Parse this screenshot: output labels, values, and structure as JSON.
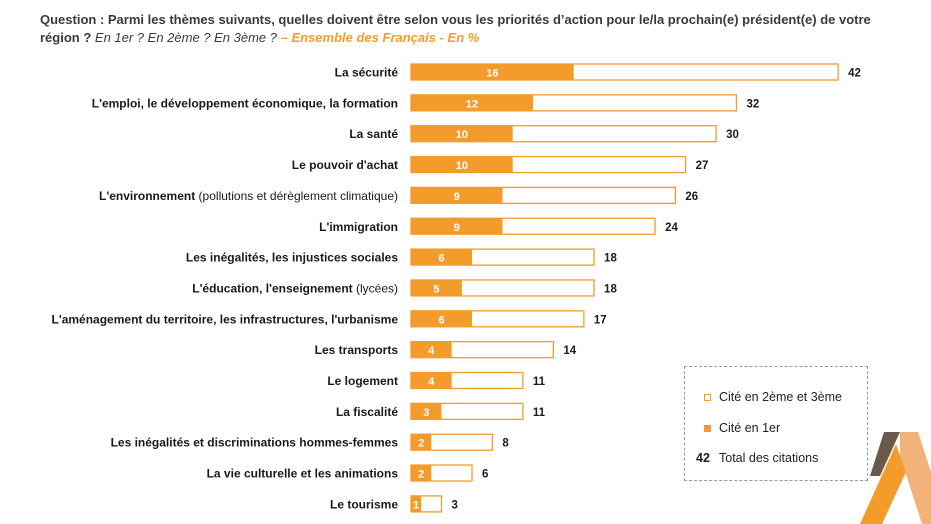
{
  "question": {
    "prefix": "Question : ",
    "text": "Parmi les thèmes suivants, quelles doivent être selon vous les priorités d’action pour le/la prochain(e) président(e) de votre région ?",
    "subtext": " En 1er ? En 2ème ? En 3ème ?",
    "population": " – Ensemble des Français - En %"
  },
  "colors": {
    "accent": "#f39c2c",
    "bar_fill": "#f39c2c",
    "bar_outline": "#f39c2c",
    "deco_dark": "#6b5a4a",
    "deco_light": "#f2b27a"
  },
  "legend": {
    "items": [
      {
        "swatch": "outline",
        "label": "Cité en 2ème et 3ème"
      },
      {
        "swatch": "filled",
        "label": "Cité en 1er"
      },
      {
        "number": "42",
        "label": "Total des citations"
      }
    ]
  },
  "chart_data": {
    "type": "bar",
    "orientation": "horizontal",
    "stacked_overlay": true,
    "categories": [
      {
        "bold": "La sécurité",
        "normal": ""
      },
      {
        "bold": "L'emploi, le développement économique, la formation",
        "normal": ""
      },
      {
        "bold": "La santé",
        "normal": ""
      },
      {
        "bold": "Le pouvoir d'achat",
        "normal": ""
      },
      {
        "bold": "L'environnement",
        "normal": " (pollutions et dérèglement climatique)"
      },
      {
        "bold": "L'immigration",
        "normal": ""
      },
      {
        "bold": "Les inégalités, les injustices sociales",
        "normal": ""
      },
      {
        "bold": "L'éducation, l'enseignement",
        "normal": " (lycées)"
      },
      {
        "bold": "L'aménagement du territoire, les infrastructures, l'urbanisme",
        "normal": ""
      },
      {
        "bold": "Les transports",
        "normal": ""
      },
      {
        "bold": "Le logement",
        "normal": ""
      },
      {
        "bold": "La fiscalité",
        "normal": ""
      },
      {
        "bold": "Les inégalités et discriminations hommes-femmes",
        "normal": ""
      },
      {
        "bold": "La vie culturelle et les animations",
        "normal": ""
      },
      {
        "bold": "Le tourisme",
        "normal": ""
      }
    ],
    "series": [
      {
        "name": "Cité en 1er",
        "values": [
          16,
          12,
          10,
          10,
          9,
          9,
          6,
          5,
          6,
          4,
          4,
          3,
          2,
          2,
          1
        ]
      },
      {
        "name": "Total des citations",
        "values": [
          42,
          32,
          30,
          27,
          26,
          24,
          18,
          18,
          17,
          14,
          11,
          11,
          8,
          6,
          3
        ]
      }
    ],
    "xlim": [
      0,
      42
    ],
    "grid": false,
    "legend_position": "bottom-right"
  }
}
